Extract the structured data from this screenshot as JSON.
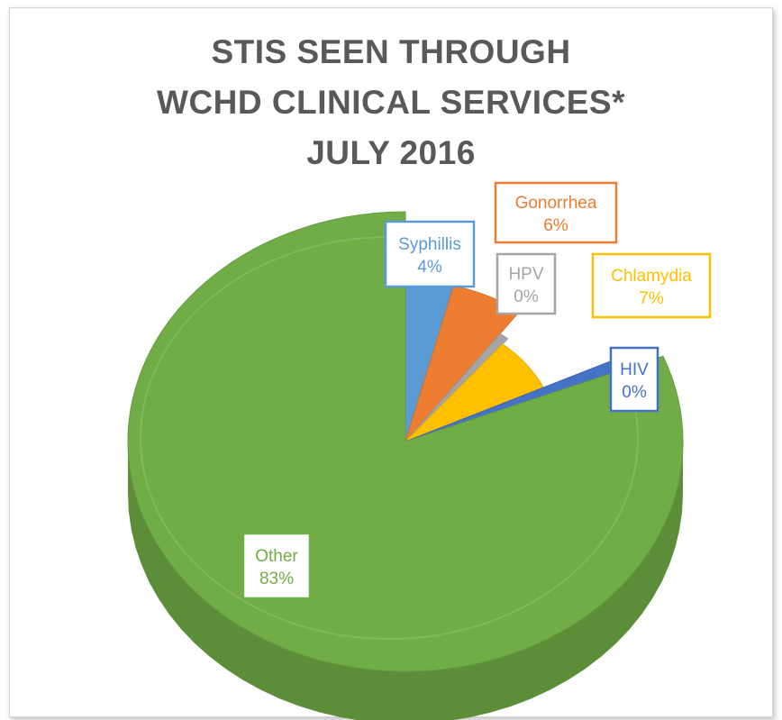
{
  "chart_data": {
    "type": "pie",
    "title_lines": [
      "STIS SEEN THROUGH",
      "WCHD CLINICAL SERVICES*",
      "JULY 2016"
    ],
    "labels": [
      "Syphillis",
      "Gonorrhea",
      "HPV",
      "Chlamydia",
      "HIV",
      "Other"
    ],
    "values": [
      4,
      6,
      0,
      7,
      0,
      83
    ],
    "value_labels": [
      "4%",
      "6%",
      "0%",
      "7%",
      "0%",
      "83%"
    ],
    "colors": [
      "#5b9bd5",
      "#ed7d31",
      "#a5a5a5",
      "#ffc000",
      "#4472c4",
      "#70ad47"
    ],
    "label_colors": [
      "#5b9bd5",
      "#ed7d31",
      "#a5a5a5",
      "#ffc000",
      "#4472c4",
      "#70ad47"
    ],
    "legend": "none",
    "style": "3d-exploded-pie"
  }
}
